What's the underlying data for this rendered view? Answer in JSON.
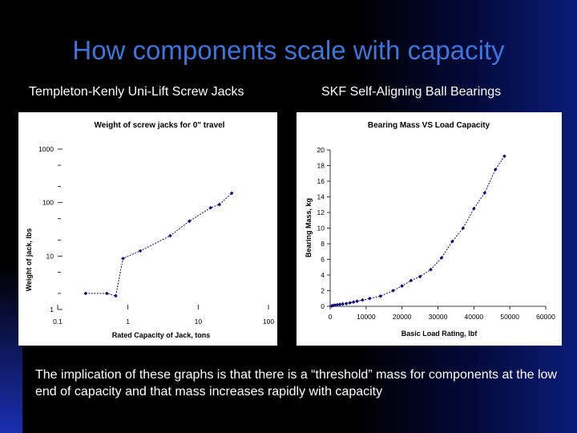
{
  "slide": {
    "title": "How components scale with capacity",
    "left_label": "Templeton-Kenly Uni-Lift Screw Jacks",
    "right_label": "SKF Self-Aligning Ball Bearings",
    "caption": "The implication of these graphs is that there is a “threshold” mass for components at the low end of capacity and that mass increases rapidly with capacity"
  },
  "colors": {
    "title": "#3f74d8",
    "text": "#ffffff",
    "series": "#0a0a7a"
  },
  "chart_data": [
    {
      "type": "line",
      "title": "Weight of screw jacks for 0\" travel",
      "xlabel": "Rated Capacity of Jack, tons",
      "ylabel": "Weight of jack, lbs",
      "xscale": "log",
      "yscale": "log",
      "xlim": [
        0.1,
        100
      ],
      "ylim": [
        1,
        1000
      ],
      "xticks": [
        "0.1",
        "1",
        "10",
        "100"
      ],
      "yticks": [
        "1",
        "10",
        "100",
        "1000"
      ],
      "grid": false,
      "series": [
        {
          "x": [
            0.25,
            0.5,
            0.67,
            0.85,
            1.5,
            4,
            7.5,
            15,
            20,
            30
          ],
          "y": [
            2,
            2,
            1.8,
            9,
            12.5,
            24,
            45,
            80,
            92,
            150
          ]
        }
      ]
    },
    {
      "type": "line",
      "title": "Bearing Mass VS Load Capacity",
      "xlabel": "Basic Load Rating, lbf",
      "ylabel": "Bearing Mass, kg",
      "xlim": [
        0,
        60000
      ],
      "ylim": [
        0,
        20
      ],
      "xticks": [
        "0",
        "10000",
        "20000",
        "30000",
        "40000",
        "50000",
        "60000"
      ],
      "yticks": [
        "0",
        "2",
        "4",
        "6",
        "8",
        "10",
        "12",
        "14",
        "16",
        "18",
        "20"
      ],
      "grid": false,
      "series": [
        {
          "x": [
            400,
            800,
            1300,
            2000,
            2700,
            3500,
            4500,
            5500,
            6500,
            7500,
            9000,
            11000,
            14000,
            17500,
            20000,
            22500,
            25000,
            28000,
            31000,
            34000,
            37000,
            40000,
            43000,
            46000,
            48500
          ],
          "y": [
            0.05,
            0.1,
            0.15,
            0.2,
            0.25,
            0.3,
            0.35,
            0.45,
            0.55,
            0.65,
            0.8,
            1.0,
            1.3,
            2.0,
            2.6,
            3.3,
            3.8,
            4.7,
            6.2,
            8.3,
            10.0,
            12.5,
            14.5,
            17.5,
            19.2
          ]
        }
      ]
    }
  ]
}
